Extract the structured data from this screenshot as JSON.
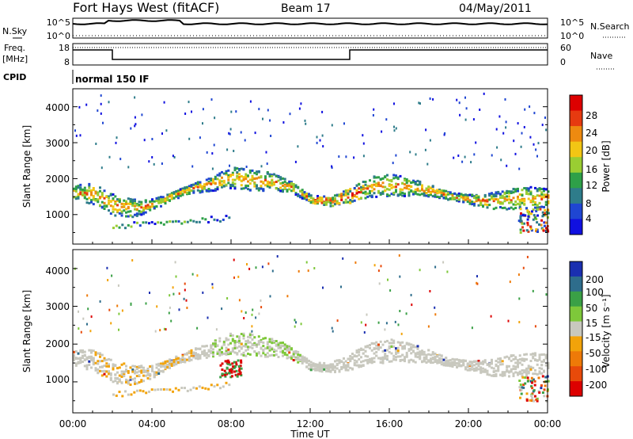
{
  "header": {
    "station": "Fort Hays West (fitACF)",
    "beam": "Beam 17",
    "date": "04/May/2011"
  },
  "noise_panel": {
    "left_label": "N.Sky",
    "right_label": "N.Search",
    "left_ticks": [
      "10^5",
      "10^0"
    ],
    "right_ticks": [
      "10^5",
      "10^0"
    ]
  },
  "freq_panel": {
    "left_label_1": "Freq.",
    "left_label_2": "[MHz]",
    "left_ticks": [
      "18",
      "8"
    ],
    "right_label": "Nave",
    "right_ticks": [
      "60",
      "0"
    ]
  },
  "cpid": {
    "label": "CPID",
    "value": "normal 150 IF"
  },
  "chart_data": [
    {
      "type": "heatmap",
      "panel": "power",
      "ylabel": "Slant Range [km]",
      "y_ticks": [
        "1000",
        "2000",
        "3000",
        "4000"
      ],
      "ylim": [
        180,
        4500
      ],
      "colorbar_label": "Power [dB]",
      "colorbar_ticks": [
        "4",
        "8",
        "12",
        "16",
        "20",
        "24",
        "28"
      ],
      "colorbar_colors": [
        "#1010e0",
        "#1f46d2",
        "#2e7c8a",
        "#2ea048",
        "#9acd32",
        "#f2c614",
        "#ee8a10",
        "#e63a10",
        "#dd0000"
      ],
      "echo_bands_km": [
        {
          "from_hour": 0.0,
          "to_hour": 24.0,
          "center_km": [
            1650,
            1600,
            1300,
            1200,
            1300,
            1550,
            1750,
            1900,
            2050,
            2000,
            1950,
            1800,
            1450,
            1400,
            1550,
            1800,
            1850,
            1800,
            1700,
            1550,
            1450,
            1400,
            1450,
            1500,
            1500
          ]
        }
      ]
    },
    {
      "type": "heatmap",
      "panel": "velocity",
      "ylabel": "Slant Range [km]",
      "y_ticks": [
        "1000",
        "2000",
        "3000",
        "4000"
      ],
      "ylim": [
        180,
        4500
      ],
      "colorbar_label": "Velocity [m s⁻¹]",
      "colorbar_ticks": [
        "200",
        "100",
        "50",
        "15",
        "-15",
        "-50",
        "-100",
        "-200"
      ],
      "colorbar_colors": [
        "#1a2fb0",
        "#2e6d8c",
        "#3aa046",
        "#7ec83a",
        "#c8c8be",
        "#f2a30a",
        "#ee7a08",
        "#e84a0a",
        "#dd0000"
      ]
    }
  ],
  "xaxis": {
    "ticks": [
      "00:00",
      "04:00",
      "08:00",
      "12:00",
      "16:00",
      "20:00",
      "00:00"
    ],
    "label": "Time UT"
  }
}
